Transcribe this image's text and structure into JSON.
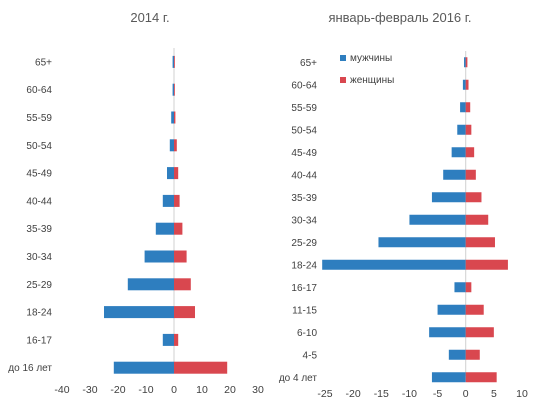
{
  "colors": {
    "male": "#2e7ebf",
    "female": "#d9474f",
    "axis": "#d0d0d0",
    "text": "#404040"
  },
  "chart_data": [
    {
      "type": "bar",
      "orientation": "horizontal",
      "title": "2014 г.",
      "categories": [
        "65+",
        "60-64",
        "55-59",
        "50-54",
        "45-49",
        "40-44",
        "35-39",
        "30-34",
        "25-29",
        "18-24",
        "16-17",
        "до 16 лет"
      ],
      "series": [
        {
          "key": "male",
          "values": [
            -0.5,
            -0.5,
            -1,
            -1.5,
            -2.5,
            -4,
            -6.5,
            -10.5,
            -16.5,
            -25,
            -4,
            -21.5
          ]
        },
        {
          "key": "female",
          "values": [
            0.3,
            0.3,
            0.5,
            1,
            1.5,
            2,
            3,
            4.5,
            6,
            7.5,
            1.5,
            19
          ]
        }
      ],
      "xlim": [
        -40,
        30
      ],
      "xticks": [
        "-40",
        "-30",
        "-20",
        "-10",
        "0",
        "10",
        "20",
        "30"
      ],
      "xtick_values": [
        -40,
        -30,
        -20,
        -10,
        0,
        10,
        20,
        30
      ],
      "grid": false
    },
    {
      "type": "bar",
      "orientation": "horizontal",
      "title": "январь-февраль 2016 г.",
      "categories": [
        "65+",
        "60-64",
        "55-59",
        "50-54",
        "45-49",
        "40-44",
        "35-39",
        "30-34",
        "25-29",
        "18-24",
        "16-17",
        "11-15",
        "6-10",
        "4-5",
        "до 4 лет"
      ],
      "series": [
        {
          "key": "male",
          "name": "мужчины",
          "values": [
            -0.3,
            -0.5,
            -1,
            -1.5,
            -2.5,
            -4,
            -6,
            -10,
            -15.5,
            -25.5,
            -2,
            -5,
            -6.5,
            -3,
            -6
          ]
        },
        {
          "key": "female",
          "name": "женщины",
          "values": [
            0.3,
            0.5,
            0.8,
            1,
            1.5,
            1.8,
            2.8,
            4,
            5.2,
            7.5,
            1,
            3.2,
            5,
            2.5,
            5.5
          ]
        }
      ],
      "xlim": [
        -25,
        10
      ],
      "xticks": [
        "-25",
        "-20",
        "-15",
        "-10",
        "-5",
        "0",
        "5",
        "10"
      ],
      "xtick_values": [
        -25,
        -20,
        -15,
        -10,
        -5,
        0,
        5,
        10
      ],
      "legend": "top-left",
      "grid": false
    }
  ]
}
